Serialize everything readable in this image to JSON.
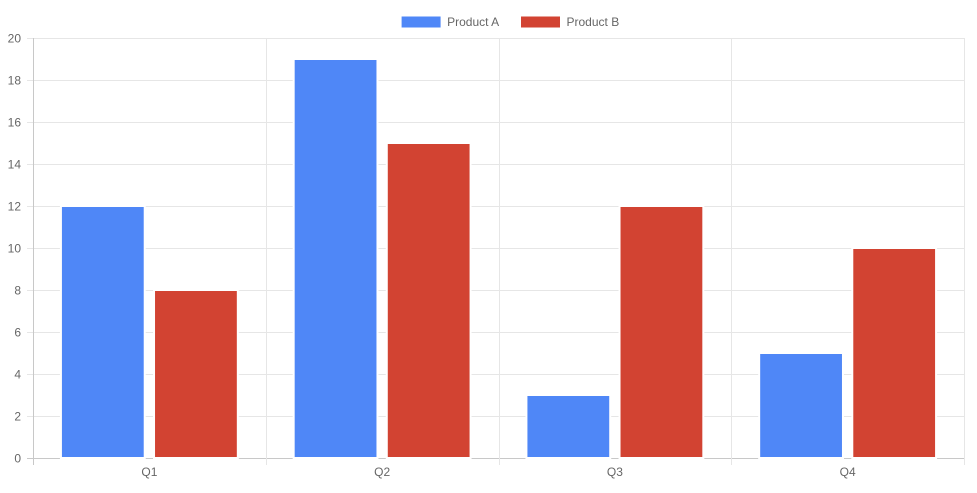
{
  "chart_data": {
    "type": "bar",
    "categories": [
      "Q1",
      "Q2",
      "Q3",
      "Q4"
    ],
    "series": [
      {
        "name": "Product A",
        "values": [
          12,
          19,
          3,
          5
        ],
        "color": "#4f87f7",
        "border_color": "#ffffff"
      },
      {
        "name": "Product B",
        "values": [
          8,
          15,
          12,
          10
        ],
        "color": "#d24332",
        "border_color": "#ffffff"
      }
    ],
    "title": "",
    "xlabel": "",
    "ylabel": "",
    "ylim": [
      0,
      20
    ],
    "ytick_step": 2,
    "grid": true,
    "legend_position": "top-center"
  }
}
